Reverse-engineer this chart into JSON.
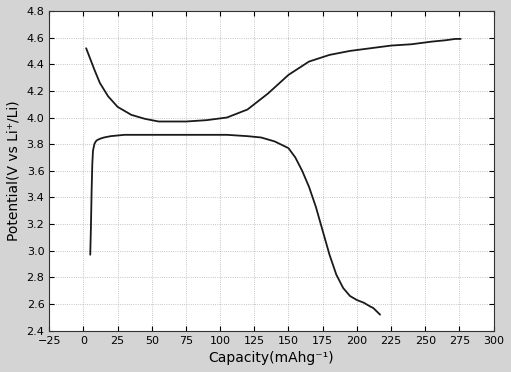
{
  "background_color": "#d4d4d4",
  "plot_bg_color": "#ffffff",
  "line_color": "#1a1a1a",
  "xlabel": "Capacity(mAhg⁻¹)",
  "ylabel": "Potential(V vs Li⁺/Li)",
  "xlim": [
    -25,
    300
  ],
  "ylim": [
    2.4,
    4.8
  ],
  "xticks": [
    -25,
    0,
    25,
    50,
    75,
    100,
    125,
    150,
    175,
    200,
    225,
    250,
    275,
    300
  ],
  "yticks": [
    2.4,
    2.6,
    2.8,
    3.0,
    3.2,
    3.4,
    3.6,
    3.8,
    4.0,
    4.2,
    4.4,
    4.6,
    4.8
  ],
  "charge_x": [
    2,
    5,
    8,
    12,
    18,
    25,
    35,
    45,
    55,
    65,
    75,
    90,
    105,
    120,
    135,
    150,
    165,
    180,
    195,
    210,
    225,
    240,
    255,
    265,
    272,
    276
  ],
  "charge_y": [
    4.52,
    4.44,
    4.36,
    4.26,
    4.16,
    4.08,
    4.02,
    3.99,
    3.97,
    3.97,
    3.97,
    3.98,
    4.0,
    4.06,
    4.18,
    4.32,
    4.42,
    4.47,
    4.5,
    4.52,
    4.54,
    4.55,
    4.57,
    4.58,
    4.59,
    4.59
  ],
  "discharge_x": [
    5,
    5.5,
    6,
    6.5,
    7,
    8,
    9,
    10,
    12,
    15,
    20,
    30,
    45,
    60,
    75,
    90,
    105,
    120,
    130,
    140,
    150,
    155,
    160,
    165,
    170,
    175,
    180,
    185,
    190,
    195,
    200,
    205,
    210,
    212,
    213,
    214,
    215,
    216,
    217
  ],
  "discharge_y": [
    2.97,
    3.18,
    3.45,
    3.65,
    3.75,
    3.8,
    3.82,
    3.83,
    3.84,
    3.85,
    3.86,
    3.87,
    3.87,
    3.87,
    3.87,
    3.87,
    3.87,
    3.86,
    3.85,
    3.82,
    3.77,
    3.7,
    3.6,
    3.48,
    3.33,
    3.15,
    2.97,
    2.82,
    2.72,
    2.66,
    2.63,
    2.61,
    2.58,
    2.57,
    2.56,
    2.55,
    2.54,
    2.53,
    2.52
  ],
  "figsize": [
    5.11,
    3.72
  ],
  "dpi": 100,
  "grid_color": "#aaaaaa",
  "grid_dot_size": 0.8,
  "tick_labelsize": 8,
  "label_fontsize": 10
}
